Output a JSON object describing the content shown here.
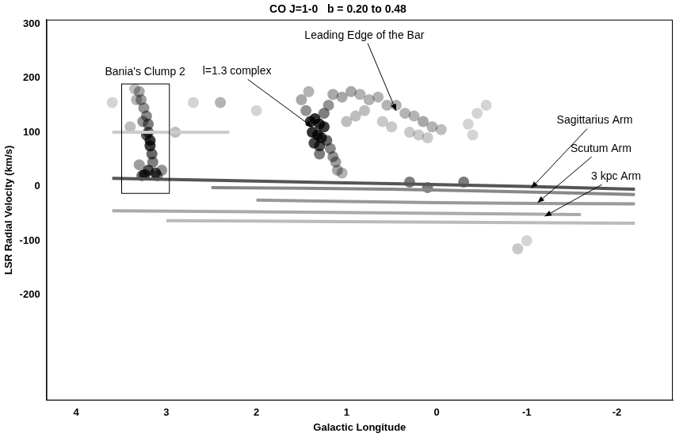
{
  "chart_data": {
    "type": "scatter",
    "title": "CO J=1-0   b = 0.20 to 0.48",
    "x_label": "Galactic Longitude",
    "y_label": "LSR Radial Velocity (km/s)",
    "xlim": [
      4.33,
      -2.62
    ],
    "xticks": [
      4,
      3,
      2,
      1,
      0,
      -1,
      -2
    ],
    "ylim": [
      -395,
      308
    ],
    "yticks": [
      -200,
      -100,
      0,
      100,
      200,
      300
    ],
    "grid": false,
    "series": [
      {
        "type": "line",
        "color": "#555555",
        "x": [
          3.6,
          2.0,
          0.5,
          -1.0,
          -2.2
        ],
        "y": [
          15,
          10,
          5,
          0,
          -5
        ]
      },
      {
        "type": "line",
        "color": "#888888",
        "x": [
          2.5,
          0.5,
          -1.5,
          -2.2
        ],
        "y": [
          -2,
          -5,
          -12,
          -15
        ]
      },
      {
        "type": "line",
        "color": "#999999",
        "x": [
          2.0,
          0,
          -2.2
        ],
        "y": [
          -25,
          -30,
          -32
        ]
      },
      {
        "type": "line",
        "color": "#aaaaaa",
        "x": [
          3.6,
          1,
          -1.6
        ],
        "y": [
          -45,
          -48,
          -52
        ]
      },
      {
        "type": "line",
        "color": "#bbbbbb",
        "x": [
          3.0,
          1,
          -2.2
        ],
        "y": [
          -63,
          -65,
          -68
        ]
      },
      {
        "type": "line",
        "color": "#cccccc",
        "x": [
          3.6,
          2.3
        ],
        "y": [
          100,
          100
        ]
      },
      {
        "type": "scatter",
        "color": "#000000",
        "x": [
          3.3,
          3.28,
          3.25,
          3.22,
          3.2,
          3.2,
          3.18,
          3.18,
          3.16,
          3.15,
          3.2,
          3.24,
          3.27,
          3.3,
          3.33,
          3.35,
          3.12,
          3.1,
          3.22,
          3.26,
          3.4,
          3.05
        ],
        "y": [
          175,
          160,
          145,
          130,
          115,
          100,
          85,
          75,
          60,
          45,
          30,
          22,
          20,
          40,
          160,
          180,
          25,
          20,
          95,
          120,
          110,
          30
        ],
        "intensity": [
          0.4,
          0.45,
          0.5,
          0.55,
          0.6,
          0.7,
          0.9,
          0.9,
          0.7,
          0.6,
          0.8,
          0.9,
          0.7,
          0.45,
          0.35,
          0.3,
          0.8,
          0.6,
          0.75,
          0.5,
          0.3,
          0.5
        ]
      },
      {
        "type": "scatter",
        "color": "#000000",
        "x": [
          1.4,
          1.35,
          1.3,
          1.25,
          1.38,
          1.32,
          1.28,
          1.36,
          1.3,
          1.22,
          1.18,
          1.15,
          1.12,
          1.1,
          1.45,
          1.5,
          1.42,
          1.2,
          1.25,
          1.3,
          1.05
        ],
        "y": [
          120,
          125,
          115,
          110,
          100,
          95,
          90,
          80,
          75,
          85,
          70,
          55,
          45,
          30,
          140,
          160,
          175,
          150,
          135,
          60,
          25
        ],
        "intensity": [
          0.95,
          0.95,
          0.95,
          0.9,
          0.95,
          0.95,
          0.9,
          0.85,
          0.8,
          0.7,
          0.55,
          0.5,
          0.45,
          0.4,
          0.5,
          0.4,
          0.35,
          0.5,
          0.6,
          0.6,
          0.35
        ]
      },
      {
        "type": "scatter",
        "color": "#000000",
        "x": [
          1.15,
          1.05,
          0.95,
          0.85,
          0.75,
          0.65,
          0.55,
          0.45,
          0.35,
          0.25,
          0.15,
          0.05,
          -0.05,
          0.3,
          0.2,
          0.1,
          0.8,
          0.9,
          1.0,
          -0.35,
          -0.45,
          -0.55,
          -0.4,
          0.6,
          0.5
        ],
        "y": [
          170,
          165,
          175,
          170,
          160,
          165,
          150,
          150,
          135,
          130,
          120,
          110,
          105,
          100,
          95,
          90,
          140,
          130,
          120,
          115,
          135,
          150,
          95,
          120,
          110
        ],
        "intensity": [
          0.4,
          0.4,
          0.4,
          0.35,
          0.35,
          0.35,
          0.35,
          0.35,
          0.35,
          0.35,
          0.4,
          0.35,
          0.3,
          0.25,
          0.25,
          0.25,
          0.3,
          0.3,
          0.3,
          0.2,
          0.2,
          0.2,
          0.2,
          0.25,
          0.25
        ]
      },
      {
        "type": "scatter",
        "color": "#000000",
        "x": [
          2.4,
          2.9,
          3.6,
          2.7,
          -1.0,
          -0.9,
          0.3,
          0.1,
          -0.3,
          2.0
        ],
        "y": [
          155,
          100,
          155,
          155,
          -100,
          -115,
          8,
          -2,
          8,
          140
        ],
        "intensity": [
          0.35,
          0.3,
          0.2,
          0.2,
          0.2,
          0.25,
          0.6,
          0.6,
          0.6,
          0.2
        ]
      }
    ],
    "annotations": [
      {
        "text": "Bania's Clump 2",
        "box": {
          "xlim": [
            3.5,
            2.97
          ],
          "ylim": [
            -12,
            190
          ]
        }
      },
      {
        "text": "l=1.3 complex",
        "x": 1.38,
        "y": 110
      },
      {
        "text": "Leading Edge of the Bar",
        "x": 0.45,
        "y": 140
      },
      {
        "text": "Sagittarius Arm",
        "x": -1.05,
        "y": -3
      },
      {
        "text": "Scutum Arm",
        "x": -1.12,
        "y": -30
      },
      {
        "text": "3 kpc Arm",
        "x": -1.2,
        "y": -55
      }
    ]
  }
}
